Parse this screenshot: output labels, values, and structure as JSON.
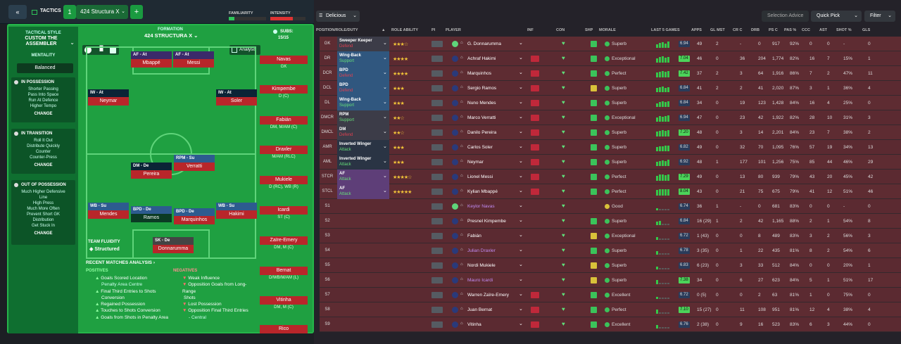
{
  "tactics": {
    "back_label": "«",
    "tactics_label": "TACTICS",
    "slot_number": "1",
    "formation_name": "424 Structura X",
    "add_label": "+",
    "familiarity_label": "FAMILIARITY",
    "intensity_label": "INTENSITY",
    "style_label": "TACTICAL STYLE",
    "style_name": "CUSTOM THE ASSEMBLER",
    "mentality_label": "MENTALITY",
    "mentality_value": "Balanced",
    "in_possession_label": "IN POSSESSION",
    "in_possession_items": [
      "Shorter Passing",
      "Pass Into Space",
      "Run At Defence",
      "Higher Tempo"
    ],
    "in_transition_label": "IN TRANSITION",
    "in_transition_items": [
      "Roll It Out",
      "Distribute Quickly",
      "Counter",
      "Counter-Press"
    ],
    "out_possession_label": "OUT OF POSSESSION",
    "out_possession_items": [
      "Much Higher Defensive",
      "Line",
      "High Press",
      "Much More Often",
      "Prevent Short GK",
      "Distribution",
      "Get Stuck In"
    ],
    "change_label": "CHANGE",
    "formation_label": "FORMATION",
    "formation_title": "424 STRUCTURA X",
    "subs_label": "SUBS:",
    "subs_count": "15/15",
    "analysis_label": "Analysis",
    "team_fluidity_label": "TEAM FLUIDITY",
    "team_fluidity_value": "Structured",
    "recent_label": "RECENT MATCHES ANALYSIS",
    "positives_label": "POSITIVES",
    "positives": [
      "Goals Scored Location",
      "Penalty Area Centre",
      "Final Third Entries to Shots",
      "Conversion",
      "Regained Possession",
      "Touches to Shots Conversion",
      "Goals from Shots in Penalty Area"
    ],
    "negatives_label": "NEGATIVES",
    "negatives": [
      "Weak Influence",
      "Opposition Goals from Long-Range",
      "Shots",
      "Lost Possession",
      "Opposition Final Third Entries",
      "- Central"
    ]
  },
  "pitch_players": [
    {
      "role": "AF - At",
      "name": "Mbappé"
    },
    {
      "role": "AF - At",
      "name": "Messi"
    },
    {
      "role": "IW - At",
      "name": "Neymar"
    },
    {
      "role": "IW - At",
      "name": "Soler"
    },
    {
      "role": "DM - De",
      "name": "Pereira"
    },
    {
      "role": "RPM - Su",
      "name": "Verratti"
    },
    {
      "role": "WB - Su",
      "name": "Mendes"
    },
    {
      "role": "BPD - De",
      "name": "Ramos"
    },
    {
      "role": "BPD - De",
      "name": "Marquinhos"
    },
    {
      "role": "WB - Su",
      "name": "Hakimi"
    },
    {
      "role": "SK - De",
      "name": "Donnarumma"
    }
  ],
  "subs": [
    {
      "name": "Navas",
      "pos": "GK"
    },
    {
      "name": "Kimpembe",
      "pos": "D (C)"
    },
    {
      "name": "Fabián",
      "pos": "DM, M/AM (C)"
    },
    {
      "name": "Draxler",
      "pos": "M/AM (RLC)"
    },
    {
      "name": "Mukiele",
      "pos": "D (RC), WB (R)"
    },
    {
      "name": "Icardi",
      "pos": "ST (C)"
    },
    {
      "name": "Zaïre-Emery",
      "pos": "DM, M (C)"
    },
    {
      "name": "Bernat",
      "pos": "D/WB/M/AM (L)"
    },
    {
      "name": "Vitinha",
      "pos": "DM, M (C)"
    },
    {
      "name": "Rico",
      "pos": ""
    }
  ],
  "squad": {
    "view_label": "Delicious",
    "selection_advice": "Selection Advice",
    "quick_pick": "Quick Pick",
    "filter": "Filter",
    "headers": [
      "POSITION/ROLE/DUTY",
      "ROLE ABILITY",
      "PI",
      "PLAYER",
      "INF",
      "CON",
      "SHP",
      "MORALE",
      "LAST 5 GAMES",
      "APPS",
      "GL MST",
      "CR C",
      "DRB",
      "PS C",
      "PAS %",
      "CCC",
      "AST",
      "SHOT %",
      "GLS"
    ],
    "rows": [
      {
        "pos": "GK",
        "role": "Sweeper Keeper",
        "duty": "Defend",
        "stars": "★★★☆",
        "player": "G. Donnarumma",
        "hot": false,
        "shp": "up",
        "morale": "Superb",
        "rating": "6.94",
        "apps": "49",
        "glmst": "2",
        "crc": "-",
        "drb": "0",
        "psc": "917",
        "pas": "92%",
        "ccc": "0",
        "ast": "0",
        "shot": "-",
        "gls": "0"
      },
      {
        "pos": "DR",
        "role": "Wing-Back",
        "duty": "Support",
        "stars": "★★★★",
        "player": "Achraf Hakimi",
        "hot": true,
        "shp": "up",
        "morale": "Exceptional",
        "rating": "7.04",
        "apps": "46",
        "glmst": "0",
        "crc": "36",
        "drb": "204",
        "psc": "1,774",
        "pas": "82%",
        "ccc": "16",
        "ast": "7",
        "shot": "15%",
        "gls": "1"
      },
      {
        "pos": "DCR",
        "role": "BPD",
        "duty": "Defend",
        "stars": "★★★★",
        "player": "Marquinhos",
        "hot": true,
        "shp": "up",
        "morale": "Perfect",
        "rating": "7.42",
        "apps": "37",
        "glmst": "2",
        "crc": "3",
        "drb": "64",
        "psc": "1,916",
        "pas": "86%",
        "ccc": "7",
        "ast": "2",
        "shot": "47%",
        "gls": "11"
      },
      {
        "pos": "DCL",
        "role": "BPD",
        "duty": "Defend",
        "stars": "★★★",
        "player": "Sergio Ramos",
        "hot": true,
        "shp": "down",
        "morale": "Superb",
        "rating": "6.84",
        "apps": "41",
        "glmst": "2",
        "crc": "2",
        "drb": "41",
        "psc": "2,020",
        "pas": "87%",
        "ccc": "3",
        "ast": "1",
        "shot": "36%",
        "gls": "4"
      },
      {
        "pos": "DL",
        "role": "Wing-Back",
        "duty": "Support",
        "stars": "★★★",
        "player": "Nuno Mendes",
        "hot": true,
        "shp": "up",
        "morale": "Superb",
        "rating": "6.84",
        "apps": "34",
        "glmst": "0",
        "crc": "19",
        "drb": "123",
        "psc": "1,428",
        "pas": "84%",
        "ccc": "16",
        "ast": "4",
        "shot": "25%",
        "gls": "0"
      },
      {
        "pos": "DMCR",
        "role": "RPM",
        "duty": "Support",
        "stars": "★★☆",
        "player": "Marco Verratti",
        "hot": true,
        "shp": "up",
        "morale": "Exceptional",
        "rating": "6.94",
        "apps": "47",
        "glmst": "0",
        "crc": "23",
        "drb": "42",
        "psc": "1,922",
        "pas": "82%",
        "ccc": "28",
        "ast": "10",
        "shot": "31%",
        "gls": "3"
      },
      {
        "pos": "DMCL",
        "role": "DM",
        "duty": "Defend",
        "stars": "★★☆",
        "player": "Danilo Pereira",
        "hot": true,
        "shp": "up",
        "morale": "Superb",
        "rating": "7.20",
        "apps": "48",
        "glmst": "0",
        "crc": "3",
        "drb": "14",
        "psc": "2,201",
        "pas": "84%",
        "ccc": "23",
        "ast": "7",
        "shot": "38%",
        "gls": "2"
      },
      {
        "pos": "AMR",
        "role": "Inverted Winger",
        "duty": "Attack",
        "stars": "★★★",
        "player": "Carlos Soler",
        "hot": true,
        "shp": "up",
        "morale": "Superb",
        "rating": "6.82",
        "apps": "49",
        "glmst": "0",
        "crc": "32",
        "drb": "70",
        "psc": "1,095",
        "pas": "76%",
        "ccc": "57",
        "ast": "19",
        "shot": "34%",
        "gls": "13"
      },
      {
        "pos": "AML",
        "role": "Inverted Winger",
        "duty": "Attack",
        "stars": "★★★",
        "player": "Neymar",
        "hot": true,
        "shp": "up",
        "morale": "Superb",
        "rating": "6.92",
        "apps": "48",
        "glmst": "1",
        "crc": "177",
        "drb": "101",
        "psc": "1,256",
        "pas": "75%",
        "ccc": "85",
        "ast": "44",
        "shot": "46%",
        "gls": "29"
      },
      {
        "pos": "STCR",
        "role": "AF",
        "duty": "Attack",
        "stars": "★★★★☆",
        "player": "Lionel Messi",
        "hot": true,
        "shp": "up",
        "morale": "Perfect",
        "rating": "7.29",
        "apps": "49",
        "glmst": "0",
        "crc": "13",
        "drb": "80",
        "psc": "939",
        "pas": "79%",
        "ccc": "43",
        "ast": "20",
        "shot": "45%",
        "gls": "42"
      },
      {
        "pos": "STCL",
        "role": "AF",
        "duty": "Attack",
        "stars": "★★★★★",
        "player": "Kylian Mbappé",
        "hot": true,
        "shp": "up",
        "morale": "Perfect",
        "rating": "8.04",
        "apps": "43",
        "glmst": "0",
        "crc": "21",
        "drb": "75",
        "psc": "675",
        "pas": "79%",
        "ccc": "41",
        "ast": "12",
        "shot": "51%",
        "gls": "46"
      },
      {
        "pos": "S1",
        "role": "",
        "duty": "",
        "stars": "",
        "player": "Keylor Navas",
        "hot": false,
        "shp": "none",
        "morale": "Good",
        "rating": "6.74",
        "apps": "36",
        "glmst": "1",
        "crc": "-",
        "drb": "0",
        "psc": "681",
        "pas": "83%",
        "ccc": "0",
        "ast": "0",
        "shot": "-",
        "gls": "0"
      },
      {
        "pos": "S2",
        "role": "",
        "duty": "",
        "stars": "",
        "player": "Presnel Kimpembe",
        "hot": false,
        "shp": "up",
        "morale": "Superb",
        "rating": "6.84",
        "apps": "16 (29)",
        "glmst": "1",
        "crc": "2",
        "drb": "42",
        "psc": "1,165",
        "pas": "88%",
        "ccc": "2",
        "ast": "1",
        "shot": "54%",
        "gls": "8"
      },
      {
        "pos": "S3",
        "role": "",
        "duty": "",
        "stars": "",
        "player": "Fabián",
        "hot": false,
        "shp": "down",
        "morale": "Exceptional",
        "rating": "6.72",
        "apps": "1 (43)",
        "glmst": "0",
        "crc": "0",
        "drb": "8",
        "psc": "489",
        "pas": "83%",
        "ccc": "3",
        "ast": "2",
        "shot": "56%",
        "gls": "3"
      },
      {
        "pos": "S4",
        "role": "",
        "duty": "",
        "stars": "",
        "player": "Julian Draxler",
        "hot": false,
        "shp": "up",
        "morale": "Superb",
        "rating": "6.78",
        "apps": "3 (35)",
        "glmst": "0",
        "crc": "1",
        "drb": "22",
        "psc": "435",
        "pas": "81%",
        "ccc": "8",
        "ast": "2",
        "shot": "54%",
        "gls": "6"
      },
      {
        "pos": "S5",
        "role": "",
        "duty": "",
        "stars": "",
        "player": "Nordi Mukiele",
        "hot": false,
        "shp": "down",
        "morale": "Superb",
        "rating": "6.83",
        "apps": "6 (23)",
        "glmst": "0",
        "crc": "3",
        "drb": "33",
        "psc": "512",
        "pas": "84%",
        "ccc": "0",
        "ast": "0",
        "shot": "20%",
        "gls": "1"
      },
      {
        "pos": "S6",
        "role": "",
        "duty": "",
        "stars": "",
        "player": "Mauro Icardi",
        "hot": false,
        "shp": "down",
        "morale": "Superb",
        "rating": "7.38",
        "apps": "34",
        "glmst": "0",
        "crc": "6",
        "drb": "27",
        "psc": "623",
        "pas": "84%",
        "ccc": "5",
        "ast": "1",
        "shot": "51%",
        "gls": "17"
      },
      {
        "pos": "S7",
        "role": "",
        "duty": "",
        "stars": "",
        "player": "Warren Zaïre-Emery",
        "hot": true,
        "shp": "up",
        "morale": "Excellent",
        "rating": "6.72",
        "apps": "0 (5)",
        "glmst": "0",
        "crc": "0",
        "drb": "2",
        "psc": "63",
        "pas": "81%",
        "ccc": "1",
        "ast": "0",
        "shot": "75%",
        "gls": "0"
      },
      {
        "pos": "S8",
        "role": "",
        "duty": "",
        "stars": "",
        "player": "Juan Bernat",
        "hot": true,
        "shp": "up",
        "morale": "Perfect",
        "rating": "7.10",
        "apps": "15 (27)",
        "glmst": "0",
        "crc": "11",
        "drb": "108",
        "psc": "951",
        "pas": "81%",
        "ccc": "12",
        "ast": "4",
        "shot": "38%",
        "gls": "4"
      },
      {
        "pos": "S9",
        "role": "",
        "duty": "",
        "stars": "",
        "player": "Vitinha",
        "hot": true,
        "shp": "up",
        "morale": "Excellent",
        "rating": "6.76",
        "apps": "2 (38)",
        "glmst": "0",
        "crc": "9",
        "drb": "16",
        "psc": "523",
        "pas": "83%",
        "ccc": "6",
        "ast": "3",
        "shot": "44%",
        "gls": "0"
      }
    ]
  }
}
